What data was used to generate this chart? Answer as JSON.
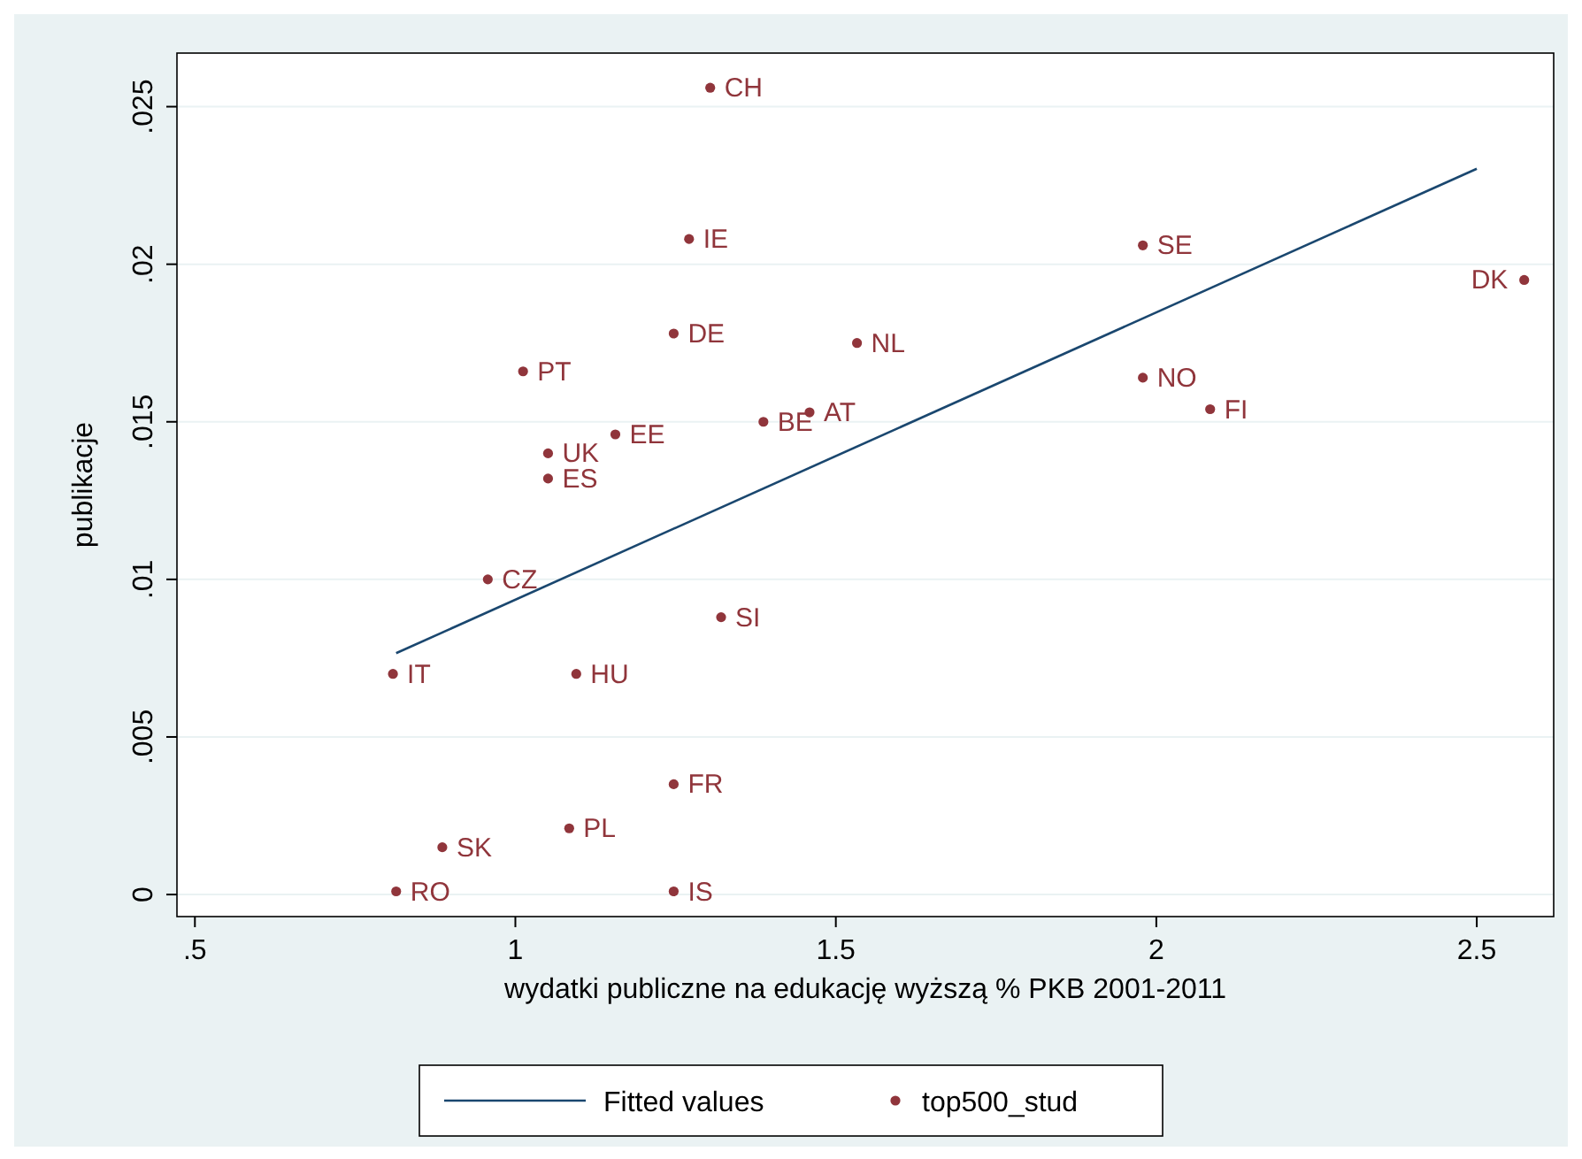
{
  "chart_data": {
    "type": "scatter",
    "xlabel": "wydatki publiczne na edukację wyższą % PKB 2001-2011",
    "ylabel": "publikacje",
    "xlim": [
      0.472,
      2.62
    ],
    "ylim": [
      -0.0007,
      0.0267
    ],
    "xticks": [
      {
        "value": 0.5,
        "label": ".5"
      },
      1,
      1.5,
      2,
      2.5
    ],
    "yticks": [
      0,
      {
        "value": 0.005,
        "label": ".005"
      },
      {
        "value": 0.01,
        "label": ".01"
      },
      {
        "value": 0.015,
        "label": ".015"
      },
      {
        "value": 0.02,
        "label": ".02"
      },
      {
        "value": 0.025,
        "label": ".025"
      }
    ],
    "grid": "y",
    "legend": "bottom",
    "series": [
      {
        "name": "Fitted values",
        "type": "line",
        "color": "#1a476f",
        "line_style": "solid",
        "x": [
          0.814,
          2.5
        ],
        "values": [
          0.00766,
          0.02303
        ]
      },
      {
        "name": "top500_stud",
        "marker": "circle",
        "color": "#90353b",
        "x": [
          1.304,
          1.271,
          1.979,
          2.574,
          1.247,
          1.533,
          1.012,
          1.979,
          2.084,
          1.459,
          1.387,
          1.156,
          1.051,
          1.051,
          0.957,
          1.321,
          0.809,
          1.095,
          1.247,
          1.084,
          0.886,
          0.814,
          1.247
        ],
        "values": [
          0.0256,
          0.0208,
          0.0206,
          0.0195,
          0.0178,
          0.0175,
          0.0166,
          0.0164,
          0.0154,
          0.0153,
          0.015,
          0.0146,
          0.014,
          0.0132,
          0.01,
          0.0088,
          0.007,
          0.007,
          0.0035,
          0.0021,
          0.0015,
          0.0001,
          0.0001
        ]
      }
    ],
    "annotations": [
      {
        "text": "CH",
        "x": 1.304,
        "y": 0.0256
      },
      {
        "text": "IE",
        "x": 1.271,
        "y": 0.0208
      },
      {
        "text": "SE",
        "x": 1.979,
        "y": 0.0206
      },
      {
        "text": "DK",
        "x": 2.574,
        "y": 0.0195
      },
      {
        "text": "DE",
        "x": 1.247,
        "y": 0.0178
      },
      {
        "text": "NL",
        "x": 1.533,
        "y": 0.0175
      },
      {
        "text": "PT",
        "x": 1.012,
        "y": 0.0166
      },
      {
        "text": "NO",
        "x": 1.979,
        "y": 0.0164
      },
      {
        "text": "FI",
        "x": 2.084,
        "y": 0.0154
      },
      {
        "text": "AT",
        "x": 1.459,
        "y": 0.0153
      },
      {
        "text": "BE",
        "x": 1.387,
        "y": 0.015
      },
      {
        "text": "EE",
        "x": 1.156,
        "y": 0.0146
      },
      {
        "text": "UK",
        "x": 1.051,
        "y": 0.014
      },
      {
        "text": "ES",
        "x": 1.051,
        "y": 0.0132
      },
      {
        "text": "CZ",
        "x": 0.957,
        "y": 0.01
      },
      {
        "text": "SI",
        "x": 1.321,
        "y": 0.0088
      },
      {
        "text": "IT",
        "x": 0.809,
        "y": 0.007
      },
      {
        "text": "HU",
        "x": 1.095,
        "y": 0.007
      },
      {
        "text": "FR",
        "x": 1.247,
        "y": 0.0035
      },
      {
        "text": "PL",
        "x": 1.084,
        "y": 0.0021
      },
      {
        "text": "SK",
        "x": 0.886,
        "y": 0.0015
      },
      {
        "text": "RO",
        "x": 0.814,
        "y": 0.0001
      },
      {
        "text": "IS",
        "x": 1.247,
        "y": 0.0001
      }
    ]
  }
}
